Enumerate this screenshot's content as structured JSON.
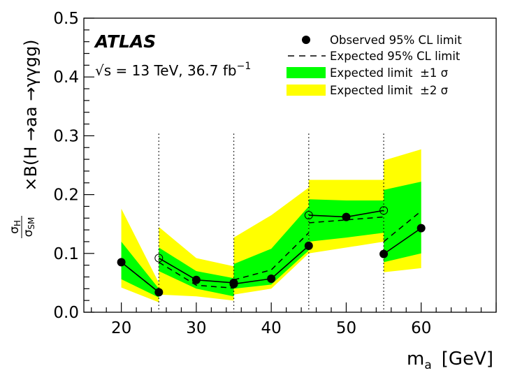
{
  "chart_data": {
    "type": "line",
    "experiment": "ATLAS",
    "energy_label": "√s = 13 TeV, 36.7 fb",
    "energy_exponent": "−1",
    "xlabel": "m",
    "xlabel_sub": "a",
    "xlabel_unit": "[GeV]",
    "ylabel": "×B(H →aa →γγgg)",
    "ylabel_frac_num": "σ",
    "ylabel_frac_num_sub": "H",
    "ylabel_frac_den": "σ",
    "ylabel_frac_den_sub": "SM",
    "xlim": [
      15,
      70
    ],
    "ylim": [
      0,
      0.5
    ],
    "xticks": [
      20,
      30,
      40,
      50,
      60
    ],
    "xtick_labels": [
      "20",
      "30",
      "40",
      "50",
      "60"
    ],
    "yticks": [
      0,
      0.1,
      0.2,
      0.3,
      0.4,
      0.5
    ],
    "ytick_labels": [
      "0.0",
      "0.1",
      "0.2",
      "0.3",
      "0.4",
      "0.5"
    ],
    "boundaries": [
      25,
      35,
      45,
      55
    ],
    "legend": [
      {
        "label": "Observed 95% CL limit",
        "kind": "marker"
      },
      {
        "label": "Expected 95% CL limit",
        "kind": "dashed"
      },
      {
        "label": "Expected limit  ±1 σ",
        "kind": "band",
        "color": "#00ff00"
      },
      {
        "label": "Expected limit  ±2 σ",
        "kind": "band",
        "color": "#ffff00"
      }
    ],
    "colors": {
      "band1": "#00ff00",
      "band2": "#ffff00"
    },
    "segments": [
      {
        "x": [
          20,
          25
        ],
        "observed": [
          0.085,
          0.034
        ],
        "expected": [
          0.085,
          0.034
        ],
        "band1_lo": [
          0.056,
          0.025
        ],
        "band1_hi": [
          0.12,
          0.04
        ],
        "band2_lo": [
          0.042,
          0.017
        ],
        "band2_hi": [
          0.176,
          0.05
        ],
        "open_markers": []
      },
      {
        "x": [
          25,
          30,
          35
        ],
        "observed": [
          0.092,
          0.055,
          0.05
        ],
        "expected": [
          0.085,
          0.046,
          0.041
        ],
        "band1_lo": [
          0.07,
          0.04,
          0.027
        ],
        "band1_hi": [
          0.11,
          0.07,
          0.058
        ],
        "band2_lo": [
          0.03,
          0.027,
          0.02
        ],
        "band2_hi": [
          0.145,
          0.092,
          0.078
        ],
        "open_markers": [
          0
        ]
      },
      {
        "x": [
          35,
          40,
          45
        ],
        "observed": [
          0.048,
          0.057,
          0.113
        ],
        "expected": [
          0.055,
          0.072,
          0.135
        ],
        "band1_lo": [
          0.04,
          0.047,
          0.105
        ],
        "band1_hi": [
          0.082,
          0.108,
          0.18
        ],
        "band2_lo": [
          0.03,
          0.04,
          0.1
        ],
        "band2_hi": [
          0.127,
          0.165,
          0.212
        ],
        "open_markers": []
      },
      {
        "x": [
          45,
          50,
          55
        ],
        "observed": [
          0.165,
          0.162,
          0.173
        ],
        "expected": [
          0.152,
          0.157,
          0.162
        ],
        "band1_lo": [
          0.12,
          0.127,
          0.135
        ],
        "band1_hi": [
          0.192,
          0.19,
          0.19
        ],
        "band2_lo": [
          0.1,
          0.11,
          0.12
        ],
        "band2_hi": [
          0.225,
          0.225,
          0.225
        ],
        "open_markers": [
          0,
          2
        ]
      },
      {
        "x": [
          55,
          60
        ],
        "observed": [
          0.099,
          0.143
        ],
        "expected": [
          0.12,
          0.172
        ],
        "band1_lo": [
          0.085,
          0.1
        ],
        "band1_hi": [
          0.208,
          0.222
        ],
        "band2_lo": [
          0.068,
          0.075
        ],
        "band2_hi": [
          0.258,
          0.277
        ],
        "open_markers": []
      }
    ]
  }
}
